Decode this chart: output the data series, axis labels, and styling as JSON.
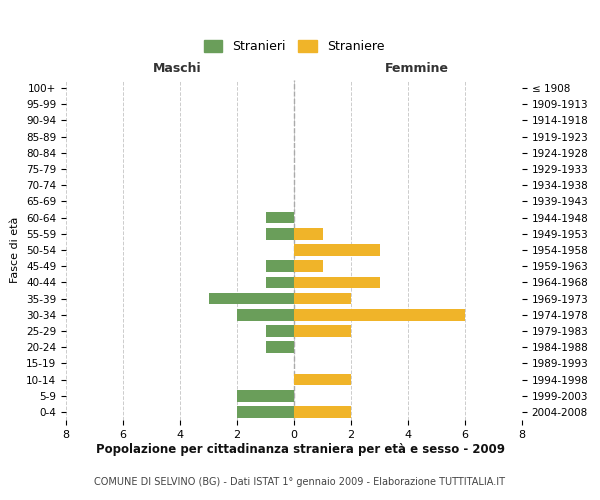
{
  "age_groups": [
    "0-4",
    "5-9",
    "10-14",
    "15-19",
    "20-24",
    "25-29",
    "30-34",
    "35-39",
    "40-44",
    "45-49",
    "50-54",
    "55-59",
    "60-64",
    "65-69",
    "70-74",
    "75-79",
    "80-84",
    "85-89",
    "90-94",
    "95-99",
    "100+"
  ],
  "birth_years": [
    "2004-2008",
    "1999-2003",
    "1994-1998",
    "1989-1993",
    "1984-1988",
    "1979-1983",
    "1974-1978",
    "1969-1973",
    "1964-1968",
    "1959-1963",
    "1954-1958",
    "1949-1953",
    "1944-1948",
    "1939-1943",
    "1934-1938",
    "1929-1933",
    "1924-1928",
    "1919-1923",
    "1914-1918",
    "1909-1913",
    "≤ 1908"
  ],
  "maschi": [
    2,
    2,
    0,
    0,
    1,
    1,
    2,
    3,
    1,
    1,
    0,
    1,
    1,
    0,
    0,
    0,
    0,
    0,
    0,
    0,
    0
  ],
  "femmine": [
    2,
    0,
    2,
    0,
    0,
    2,
    6,
    2,
    3,
    1,
    3,
    1,
    0,
    0,
    0,
    0,
    0,
    0,
    0,
    0,
    0
  ],
  "maschi_color": "#6a9e5a",
  "femmine_color": "#f0b429",
  "title": "Popolazione per cittadinanza straniera per età e sesso - 2009",
  "subtitle": "COMUNE DI SELVINO (BG) - Dati ISTAT 1° gennaio 2009 - Elaborazione TUTTITALIA.IT",
  "xlabel_left": "Maschi",
  "xlabel_right": "Femmine",
  "ylabel_left": "Fasce di età",
  "legend_maschi": "Stranieri",
  "legend_femmine": "Straniere",
  "xlim": 8,
  "background_color": "#ffffff",
  "grid_color": "#cccccc"
}
